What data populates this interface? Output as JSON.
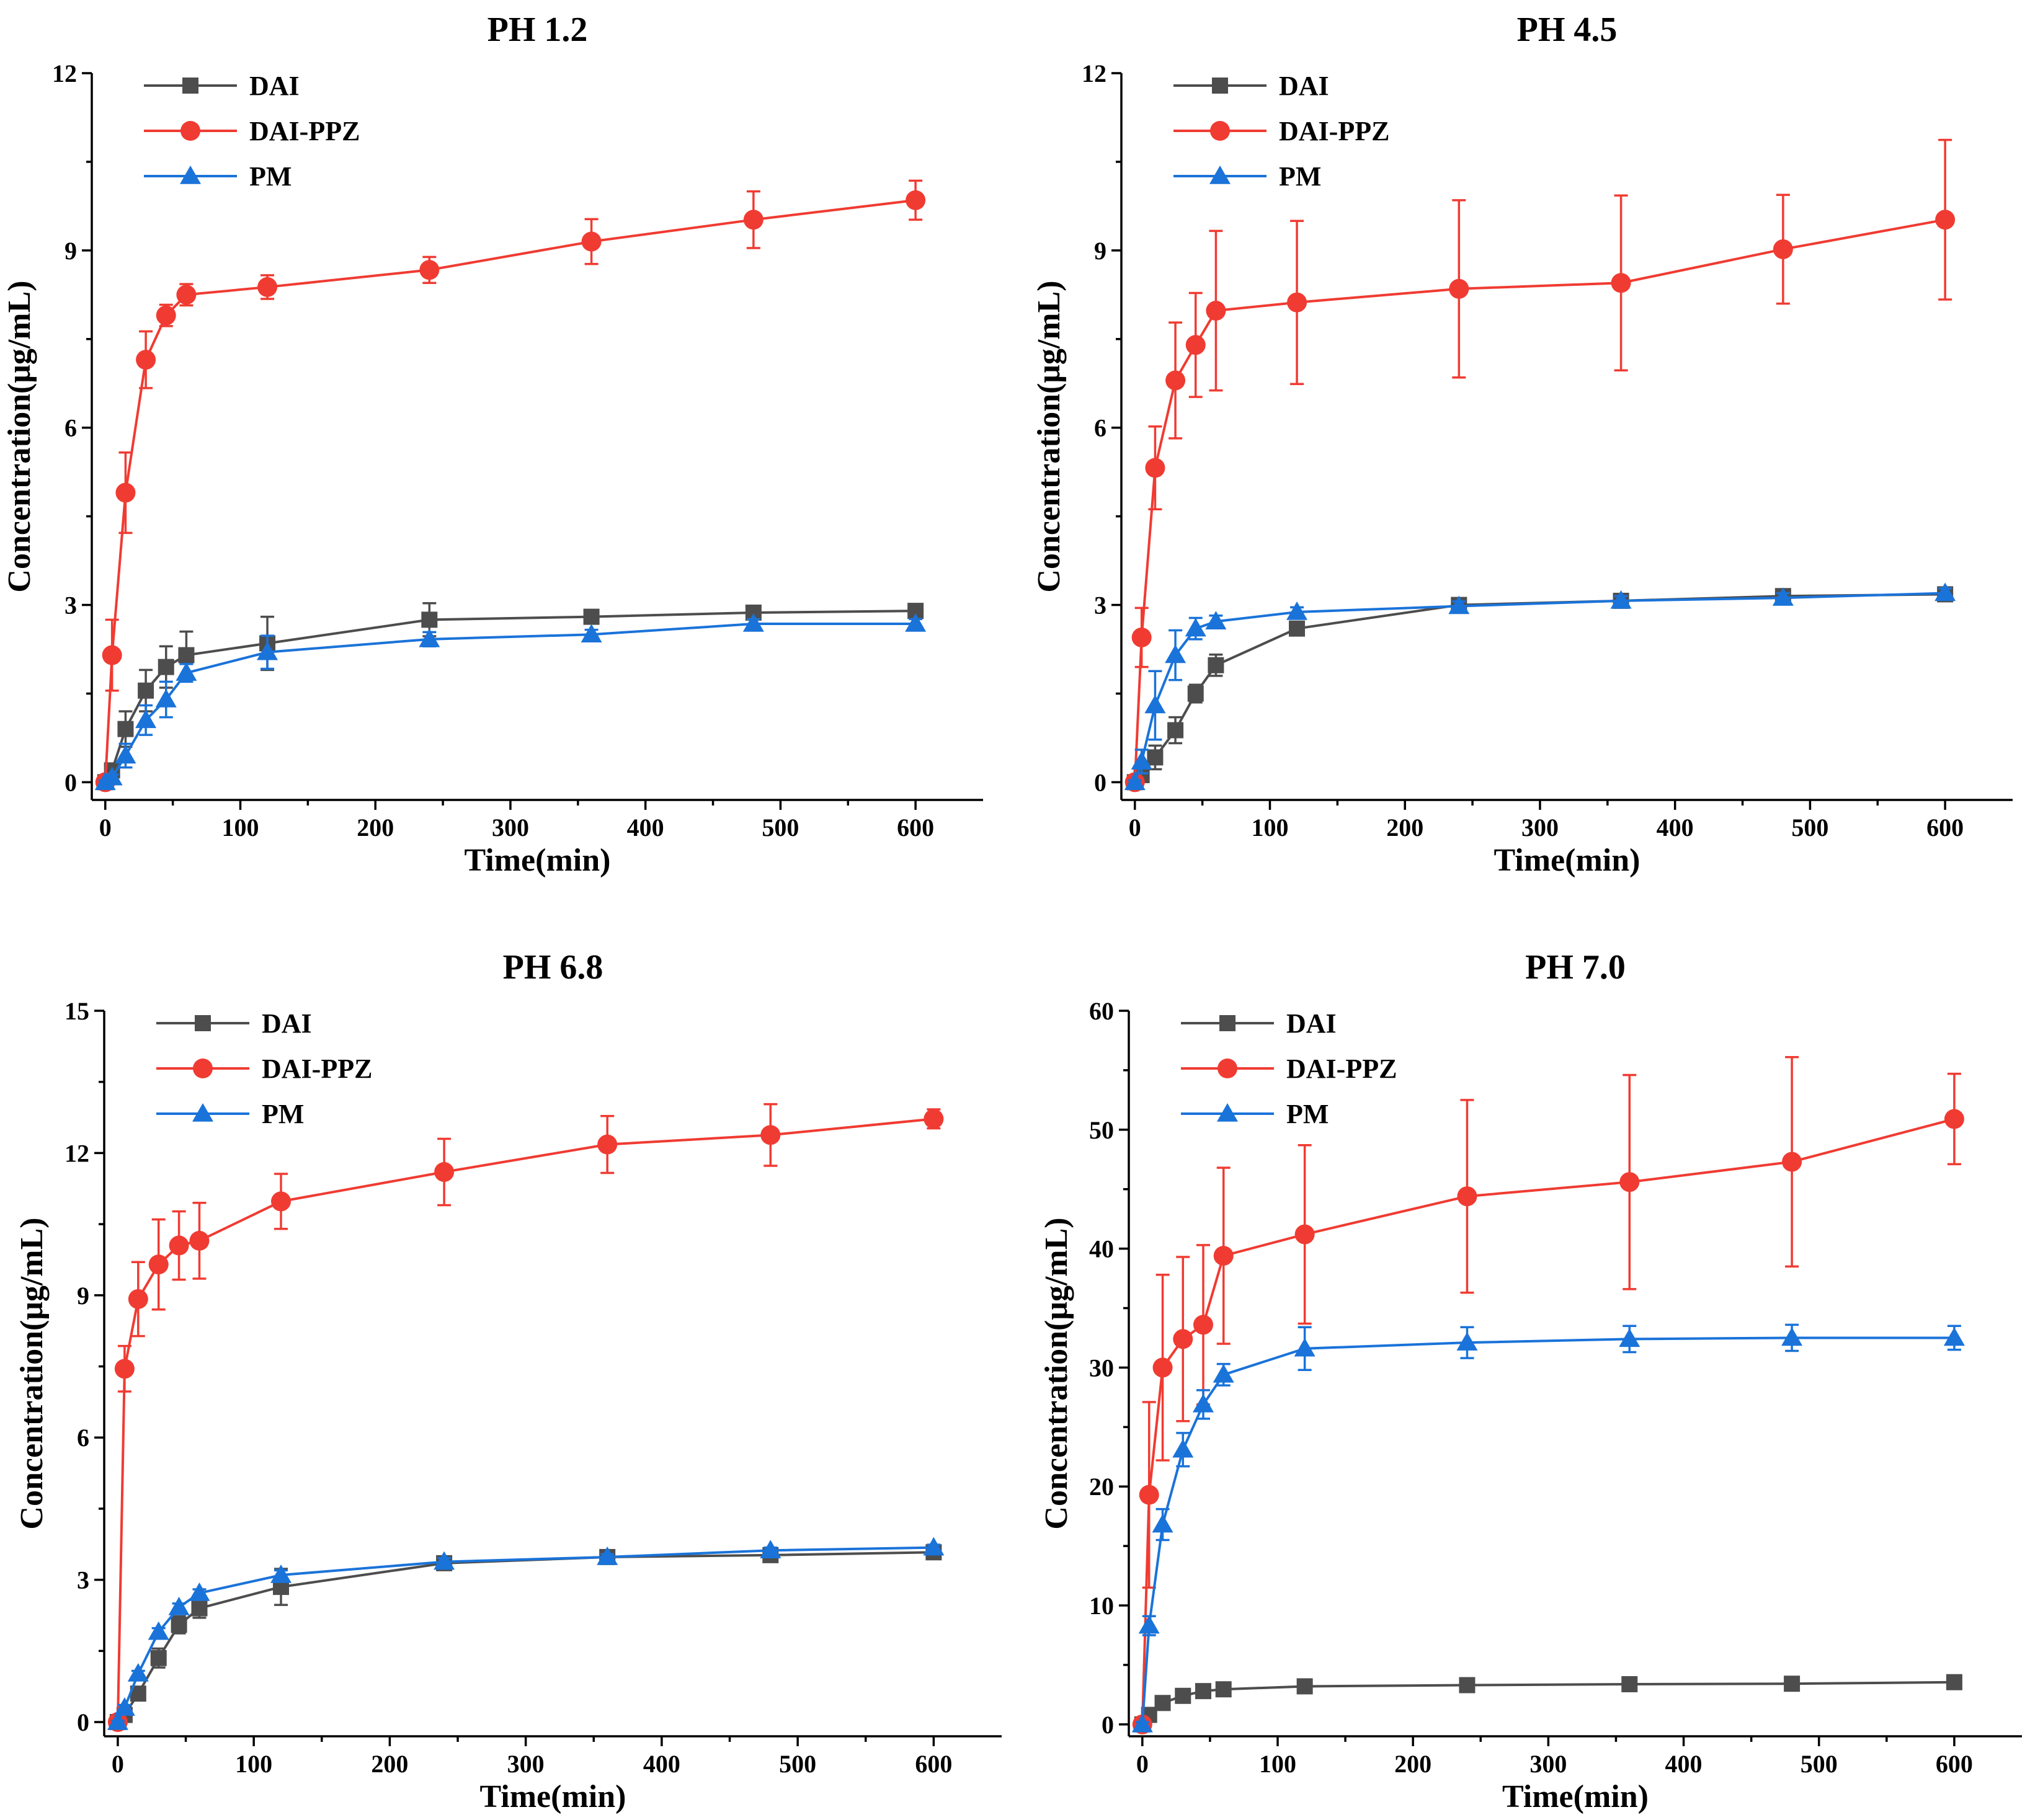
{
  "chart_data": [
    {
      "type": "line",
      "title": "PH 1.2",
      "xlabel": "Time(min)",
      "ylabel": "Concentration(μg/mL)",
      "xlim": [
        -10,
        650
      ],
      "ylim": [
        -0.3,
        12
      ],
      "xticks": [
        "0",
        "100",
        "200",
        "300",
        "400",
        "500",
        "600"
      ],
      "yticks": [
        "0",
        "3",
        "6",
        "9",
        "12"
      ],
      "legend_position": "top-left",
      "x": [
        0,
        5,
        15,
        30,
        45,
        60,
        120,
        240,
        360,
        480,
        600
      ],
      "series": [
        {
          "name": "DAI",
          "marker": "square",
          "color": "#4d4d4d",
          "values": [
            0,
            0.2,
            0.9,
            1.55,
            1.95,
            2.15,
            2.35,
            2.75,
            2.8,
            2.87,
            2.9
          ],
          "errors": [
            0.03,
            0.1,
            0.3,
            0.35,
            0.35,
            0.4,
            0.45,
            0.28,
            0.1,
            0.1,
            0.1
          ]
        },
        {
          "name": "DAI-PPZ",
          "marker": "circle",
          "color": "#f03b32",
          "values": [
            0,
            2.15,
            4.9,
            7.15,
            7.9,
            8.25,
            8.38,
            8.67,
            9.15,
            9.52,
            9.85
          ],
          "errors": [
            0.03,
            0.6,
            0.68,
            0.48,
            0.18,
            0.18,
            0.2,
            0.22,
            0.38,
            0.48,
            0.33
          ]
        },
        {
          "name": "PM",
          "marker": "triangle",
          "color": "#1a73d9",
          "values": [
            0,
            0.08,
            0.45,
            1.05,
            1.4,
            1.85,
            2.2,
            2.42,
            2.5,
            2.68,
            2.68
          ],
          "errors": [
            0.03,
            0.05,
            0.2,
            0.25,
            0.3,
            0.15,
            0.28,
            0.12,
            0.08,
            0.08,
            0.08
          ]
        }
      ]
    },
    {
      "type": "line",
      "title": "PH 4.5",
      "xlabel": "Time(min)",
      "ylabel": "Concentration(μg/mL)",
      "xlim": [
        -10,
        650
      ],
      "ylim": [
        -0.3,
        12
      ],
      "xticks": [
        "0",
        "100",
        "200",
        "300",
        "400",
        "500",
        "600"
      ],
      "yticks": [
        "0",
        "3",
        "6",
        "9",
        "12"
      ],
      "legend_position": "top-left",
      "x": [
        0,
        5,
        15,
        30,
        45,
        60,
        120,
        240,
        360,
        480,
        600
      ],
      "series": [
        {
          "name": "DAI",
          "marker": "square",
          "color": "#4d4d4d",
          "values": [
            0,
            0.12,
            0.42,
            0.88,
            1.5,
            1.98,
            2.6,
            3.0,
            3.07,
            3.15,
            3.18
          ],
          "errors": [
            0.03,
            0.1,
            0.2,
            0.22,
            0.15,
            0.18,
            0.1,
            0.08,
            0.1,
            0.1,
            0.1
          ]
        },
        {
          "name": "DAI-PPZ",
          "marker": "circle",
          "color": "#f03b32",
          "values": [
            0,
            2.45,
            5.32,
            6.8,
            7.4,
            7.98,
            8.12,
            8.35,
            8.45,
            9.02,
            9.52
          ],
          "errors": [
            0.03,
            0.5,
            0.7,
            0.98,
            0.88,
            1.35,
            1.38,
            1.5,
            1.48,
            0.92,
            1.35
          ]
        },
        {
          "name": "PM",
          "marker": "triangle",
          "color": "#1a73d9",
          "values": [
            0,
            0.35,
            1.3,
            2.15,
            2.6,
            2.72,
            2.88,
            2.98,
            3.07,
            3.12,
            3.2
          ],
          "errors": [
            0.03,
            0.2,
            0.58,
            0.42,
            0.18,
            0.1,
            0.08,
            0.08,
            0.08,
            0.08,
            0.08
          ]
        }
      ]
    },
    {
      "type": "line",
      "title": "PH 6.8",
      "xlabel": "Time(min)",
      "ylabel": "Concentration(μg/mL)",
      "xlim": [
        -10,
        650
      ],
      "ylim": [
        -0.3,
        15
      ],
      "xticks": [
        "0",
        "100",
        "200",
        "300",
        "400",
        "500",
        "600"
      ],
      "yticks": [
        "0",
        "3",
        "6",
        "9",
        "12",
        "15"
      ],
      "legend_position": "top-left",
      "x": [
        0,
        5,
        15,
        30,
        45,
        60,
        120,
        240,
        360,
        480,
        600
      ],
      "series": [
        {
          "name": "DAI",
          "marker": "square",
          "color": "#4d4d4d",
          "values": [
            0,
            0.15,
            0.6,
            1.35,
            2.05,
            2.4,
            2.85,
            3.35,
            3.48,
            3.52,
            3.58
          ],
          "errors": [
            0.03,
            0.08,
            0.12,
            0.2,
            0.18,
            0.2,
            0.38,
            0.12,
            0.1,
            0.1,
            0.1
          ]
        },
        {
          "name": "DAI-PPZ",
          "marker": "circle",
          "color": "#f03b32",
          "values": [
            0,
            7.45,
            8.92,
            9.65,
            10.05,
            10.15,
            10.98,
            11.6,
            12.18,
            12.38,
            12.72
          ],
          "errors": [
            0.03,
            0.48,
            0.78,
            0.95,
            0.72,
            0.8,
            0.58,
            0.7,
            0.6,
            0.65,
            0.2
          ]
        },
        {
          "name": "PM",
          "marker": "triangle",
          "color": "#1a73d9",
          "values": [
            0,
            0.3,
            1.02,
            1.9,
            2.42,
            2.72,
            3.1,
            3.38,
            3.48,
            3.62,
            3.68
          ],
          "errors": [
            0.03,
            0.06,
            0.06,
            0.08,
            0.08,
            0.08,
            0.1,
            0.08,
            0.06,
            0.06,
            0.06
          ]
        }
      ]
    },
    {
      "type": "line",
      "title": "PH 7.0",
      "xlabel": "Time(min)",
      "ylabel": "Concentration(μg/mL)",
      "xlim": [
        -10,
        650
      ],
      "ylim": [
        -1,
        60
      ],
      "xticks": [
        "0",
        "100",
        "200",
        "300",
        "400",
        "500",
        "600"
      ],
      "yticks": [
        "0",
        "10",
        "20",
        "30",
        "40",
        "50",
        "60"
      ],
      "legend_position": "top-left",
      "x": [
        0,
        5,
        15,
        30,
        45,
        60,
        120,
        240,
        360,
        480,
        600
      ],
      "series": [
        {
          "name": "DAI",
          "marker": "square",
          "color": "#4d4d4d",
          "values": [
            0,
            0.8,
            1.8,
            2.4,
            2.8,
            2.95,
            3.2,
            3.3,
            3.38,
            3.42,
            3.55
          ],
          "errors": [
            0.1,
            0.2,
            0.2,
            0.2,
            0.2,
            0.2,
            0.2,
            0.2,
            0.2,
            0.2,
            0.2
          ]
        },
        {
          "name": "DAI-PPZ",
          "marker": "circle",
          "color": "#f03b32",
          "values": [
            0,
            19.3,
            30.0,
            32.4,
            33.6,
            39.4,
            41.2,
            44.4,
            45.6,
            47.3,
            50.9
          ],
          "errors": [
            0.2,
            7.8,
            7.8,
            6.9,
            6.7,
            7.4,
            7.5,
            8.1,
            9.0,
            8.8,
            3.8
          ]
        },
        {
          "name": "PM",
          "marker": "triangle",
          "color": "#1a73d9",
          "values": [
            0,
            8.3,
            16.8,
            23.1,
            26.9,
            29.4,
            31.6,
            32.1,
            32.4,
            32.5,
            32.5
          ],
          "errors": [
            0.2,
            0.8,
            1.3,
            1.4,
            1.2,
            0.9,
            1.8,
            1.3,
            1.1,
            1.1,
            1.0
          ]
        }
      ]
    }
  ]
}
